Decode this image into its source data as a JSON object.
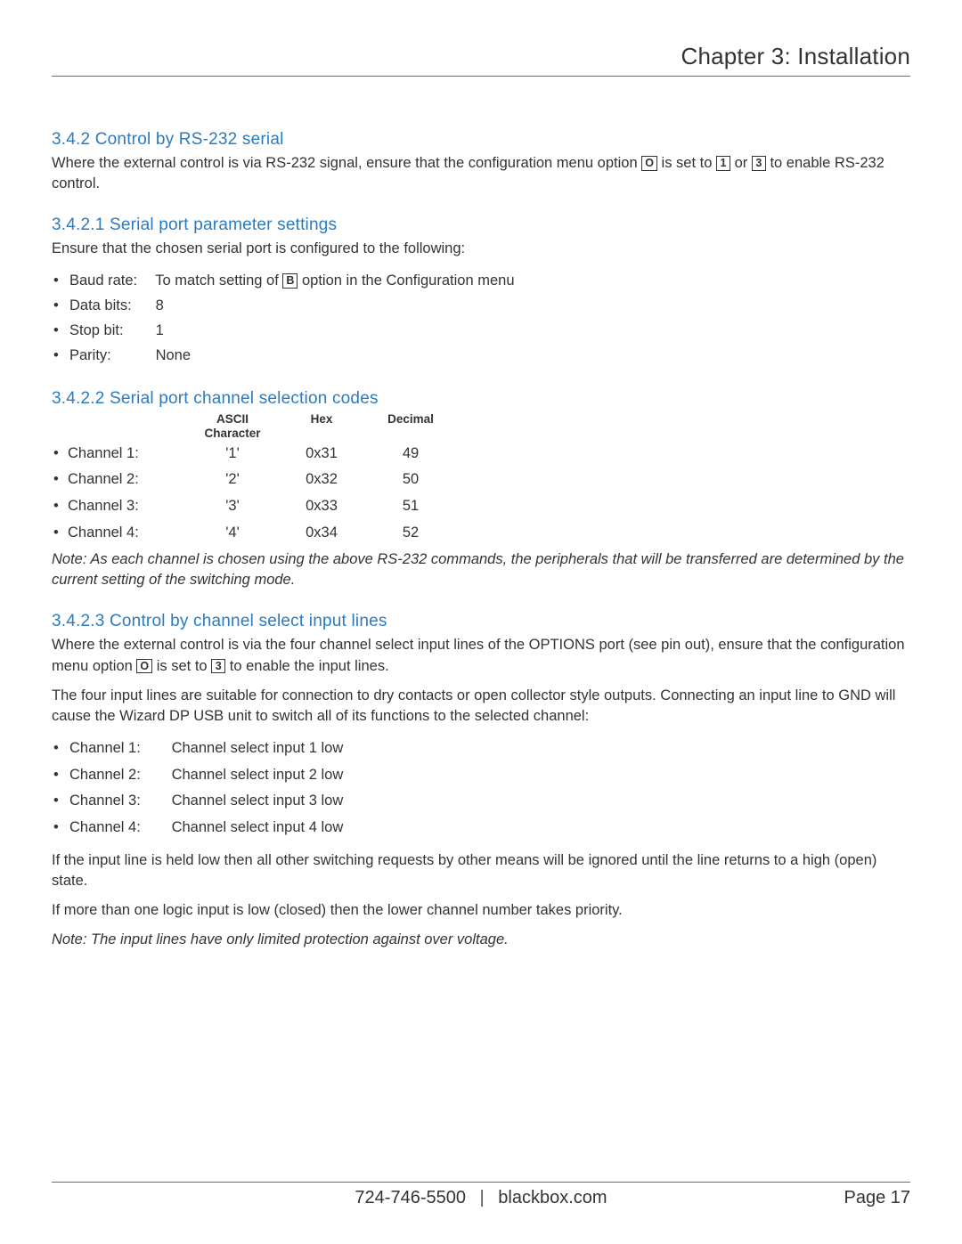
{
  "colors": {
    "accent": "#2a7bbf",
    "text": "#333333",
    "background": "#ffffff"
  },
  "header": {
    "title": "Chapter 3: Installation"
  },
  "sec1": {
    "heading": "3.4.2 Control by RS-232 serial",
    "intro_pre": "Where the external control is via RS-232 signal, ensure that the configuration menu option ",
    "key_o": "O",
    "intro_mid1": " is set to ",
    "key_1": "1",
    "intro_mid2": " or ",
    "key_3": "3",
    "intro_post": " to enable RS-232 control."
  },
  "sec2": {
    "heading": "3.4.2.1 Serial port parameter settings",
    "intro": "Ensure that the chosen serial port is configured to the following:",
    "items": [
      {
        "label": "Baud rate:",
        "value_pre": "To match setting of ",
        "key": "B",
        "value_post": " option in the Configuration menu"
      },
      {
        "label": "Data bits:",
        "value": "8"
      },
      {
        "label": "Stop bit:",
        "value": "1"
      },
      {
        "label": "Parity:",
        "value": "None"
      }
    ]
  },
  "sec3": {
    "heading": "3.4.2.2 Serial port channel selection codes",
    "columns": {
      "ascii_l1": "ASCII",
      "ascii_l2": "Character",
      "hex": "Hex",
      "decimal": "Decimal"
    },
    "rows": [
      {
        "channel": "Channel 1:",
        "ascii": "'1'",
        "hex": "0x31",
        "dec": "49"
      },
      {
        "channel": "Channel 2:",
        "ascii": "'2'",
        "hex": "0x32",
        "dec": "50"
      },
      {
        "channel": "Channel 3:",
        "ascii": "'3'",
        "hex": "0x33",
        "dec": "51"
      },
      {
        "channel": "Channel 4:",
        "ascii": "'4'",
        "hex": "0x34",
        "dec": "52"
      }
    ],
    "note": "Note: As each channel is chosen using the above RS-232 commands, the peripherals that will be transferred are determined by the current setting of the switching mode."
  },
  "sec4": {
    "heading": "3.4.2.3 Control by channel select input lines",
    "p1_pre": "Where the external control is via the four channel select input lines of the OPTIONS port (see pin out), ensure that the configuration menu option ",
    "key_o": "O",
    "p1_mid": " is set to ",
    "key_3": "3",
    "p1_post": " to enable the input lines.",
    "p2": "The four input lines are suitable for connection to dry contacts or open collector style outputs. Connecting an input line to GND will cause the Wizard DP USB unit to switch all of its functions to the selected channel:",
    "lines": [
      {
        "label": "Channel 1:",
        "text_pre": "Channel select input ",
        "num": "1",
        "text_post": " low"
      },
      {
        "label": "Channel 2:",
        "text_pre": "Channel select input ",
        "num": "2",
        "text_post": " low"
      },
      {
        "label": "Channel 3:",
        "text_pre": "Channel select input ",
        "num": "3",
        "text_post": " low"
      },
      {
        "label": "Channel 4:",
        "text_pre": "Channel select input ",
        "num": "4",
        "text_post": " low"
      }
    ],
    "p3": "If the input line is held low then all other switching requests by other means will be ignored until the line returns to a high (open) state.",
    "p4": "If more than one logic input is low (closed) then the lower channel number takes priority.",
    "note": "Note: The input lines have only limited protection against over voltage."
  },
  "footer": {
    "phone": "724-746-5500",
    "site": "blackbox.com",
    "page_label": "Page 17"
  }
}
